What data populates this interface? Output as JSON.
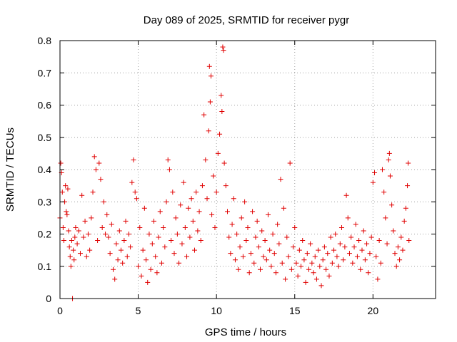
{
  "chart_data": {
    "type": "scatter",
    "title": "Day 089 of 2025, SRMTID for receiver pygr",
    "xlabel": "GPS time / hours",
    "ylabel": "SRMTID / TECUs",
    "xlim": [
      0,
      24
    ],
    "ylim": [
      0,
      0.8
    ],
    "xticks": [
      0,
      5,
      10,
      15,
      20
    ],
    "yticks": [
      0,
      0.1,
      0.2,
      0.3,
      0.4,
      0.5,
      0.6,
      0.7,
      0.8
    ],
    "grid": true,
    "marker": "+",
    "color": "#e00000",
    "series": [
      {
        "name": "SRMTID",
        "points": [
          [
            0.0,
            0.25
          ],
          [
            0.05,
            0.42
          ],
          [
            0.1,
            0.39
          ],
          [
            0.15,
            0.33
          ],
          [
            0.2,
            0.22
          ],
          [
            0.25,
            0.18
          ],
          [
            0.3,
            0.3
          ],
          [
            0.35,
            0.35
          ],
          [
            0.4,
            0.27
          ],
          [
            0.45,
            0.26
          ],
          [
            0.5,
            0.34
          ],
          [
            0.55,
            0.21
          ],
          [
            0.6,
            0.16
          ],
          [
            0.65,
            0.13
          ],
          [
            0.7,
            0.1
          ],
          [
            0.75,
            0.18
          ],
          [
            0.8,
            0.0
          ],
          [
            0.85,
            0.15
          ],
          [
            0.9,
            0.12
          ],
          [
            0.95,
            0.19
          ],
          [
            1.0,
            0.22
          ],
          [
            1.1,
            0.17
          ],
          [
            1.2,
            0.21
          ],
          [
            1.3,
            0.14
          ],
          [
            1.4,
            0.32
          ],
          [
            1.5,
            0.19
          ],
          [
            1.6,
            0.24
          ],
          [
            1.7,
            0.13
          ],
          [
            1.8,
            0.2
          ],
          [
            1.9,
            0.15
          ],
          [
            2.0,
            0.25
          ],
          [
            2.1,
            0.33
          ],
          [
            2.2,
            0.44
          ],
          [
            2.3,
            0.4
          ],
          [
            2.4,
            0.18
          ],
          [
            2.5,
            0.42
          ],
          [
            2.6,
            0.37
          ],
          [
            2.7,
            0.22
          ],
          [
            2.8,
            0.3
          ],
          [
            2.9,
            0.2
          ],
          [
            3.0,
            0.26
          ],
          [
            3.1,
            0.19
          ],
          [
            3.2,
            0.14
          ],
          [
            3.3,
            0.23
          ],
          [
            3.4,
            0.09
          ],
          [
            3.5,
            0.06
          ],
          [
            3.6,
            0.17
          ],
          [
            3.7,
            0.12
          ],
          [
            3.8,
            0.21
          ],
          [
            3.9,
            0.15
          ],
          [
            4.0,
            0.11
          ],
          [
            4.1,
            0.18
          ],
          [
            4.2,
            0.24
          ],
          [
            4.3,
            0.13
          ],
          [
            4.4,
            0.2
          ],
          [
            4.5,
            0.16
          ],
          [
            4.6,
            0.36
          ],
          [
            4.7,
            0.43
          ],
          [
            4.8,
            0.33
          ],
          [
            4.9,
            0.31
          ],
          [
            5.0,
            0.1
          ],
          [
            5.1,
            0.22
          ],
          [
            5.2,
            0.07
          ],
          [
            5.3,
            0.15
          ],
          [
            5.4,
            0.28
          ],
          [
            5.5,
            0.12
          ],
          [
            5.6,
            0.05
          ],
          [
            5.7,
            0.2
          ],
          [
            5.8,
            0.09
          ],
          [
            5.9,
            0.17
          ],
          [
            6.0,
            0.24
          ],
          [
            6.1,
            0.13
          ],
          [
            6.2,
            0.08
          ],
          [
            6.3,
            0.19
          ],
          [
            6.4,
            0.27
          ],
          [
            6.5,
            0.11
          ],
          [
            6.6,
            0.22
          ],
          [
            6.7,
            0.16
          ],
          [
            6.8,
            0.3
          ],
          [
            6.9,
            0.43
          ],
          [
            7.0,
            0.4
          ],
          [
            7.1,
            0.18
          ],
          [
            7.2,
            0.33
          ],
          [
            7.3,
            0.14
          ],
          [
            7.4,
            0.25
          ],
          [
            7.5,
            0.2
          ],
          [
            7.6,
            0.11
          ],
          [
            7.7,
            0.29
          ],
          [
            7.8,
            0.17
          ],
          [
            7.9,
            0.36
          ],
          [
            8.0,
            0.22
          ],
          [
            8.1,
            0.13
          ],
          [
            8.2,
            0.28
          ],
          [
            8.3,
            0.19
          ],
          [
            8.4,
            0.31
          ],
          [
            8.5,
            0.24
          ],
          [
            8.6,
            0.15
          ],
          [
            8.7,
            0.33
          ],
          [
            8.8,
            0.21
          ],
          [
            8.9,
            0.27
          ],
          [
            9.0,
            0.18
          ],
          [
            9.1,
            0.35
          ],
          [
            9.2,
            0.57
          ],
          [
            9.3,
            0.43
          ],
          [
            9.4,
            0.31
          ],
          [
            9.5,
            0.52
          ],
          [
            9.55,
            0.72
          ],
          [
            9.6,
            0.61
          ],
          [
            9.65,
            0.69
          ],
          [
            9.7,
            0.26
          ],
          [
            9.8,
            0.38
          ],
          [
            9.9,
            0.22
          ],
          [
            10.0,
            0.33
          ],
          [
            10.1,
            0.45
          ],
          [
            10.2,
            0.51
          ],
          [
            10.3,
            0.63
          ],
          [
            10.35,
            0.58
          ],
          [
            10.4,
            0.78
          ],
          [
            10.45,
            0.77
          ],
          [
            10.5,
            0.42
          ],
          [
            10.6,
            0.35
          ],
          [
            10.7,
            0.27
          ],
          [
            10.8,
            0.19
          ],
          [
            10.9,
            0.14
          ],
          [
            11.0,
            0.23
          ],
          [
            11.1,
            0.31
          ],
          [
            11.2,
            0.12
          ],
          [
            11.3,
            0.2
          ],
          [
            11.4,
            0.09
          ],
          [
            11.5,
            0.16
          ],
          [
            11.6,
            0.25
          ],
          [
            11.7,
            0.13
          ],
          [
            11.8,
            0.3
          ],
          [
            11.9,
            0.18
          ],
          [
            12.0,
            0.22
          ],
          [
            12.1,
            0.08
          ],
          [
            12.2,
            0.14
          ],
          [
            12.3,
            0.27
          ],
          [
            12.4,
            0.11
          ],
          [
            12.5,
            0.19
          ],
          [
            12.6,
            0.24
          ],
          [
            12.7,
            0.16
          ],
          [
            12.8,
            0.09
          ],
          [
            12.9,
            0.21
          ],
          [
            13.0,
            0.13
          ],
          [
            13.1,
            0.18
          ],
          [
            13.2,
            0.12
          ],
          [
            13.3,
            0.26
          ],
          [
            13.4,
            0.15
          ],
          [
            13.5,
            0.1
          ],
          [
            13.6,
            0.2
          ],
          [
            13.7,
            0.14
          ],
          [
            13.8,
            0.08
          ],
          [
            13.9,
            0.23
          ],
          [
            14.0,
            0.17
          ],
          [
            14.1,
            0.37
          ],
          [
            14.2,
            0.11
          ],
          [
            14.3,
            0.28
          ],
          [
            14.4,
            0.06
          ],
          [
            14.5,
            0.19
          ],
          [
            14.6,
            0.13
          ],
          [
            14.7,
            0.42
          ],
          [
            14.8,
            0.09
          ],
          [
            14.9,
            0.16
          ],
          [
            15.0,
            0.22
          ],
          [
            15.1,
            0.11
          ],
          [
            15.2,
            0.07
          ],
          [
            15.3,
            0.15
          ],
          [
            15.4,
            0.1
          ],
          [
            15.5,
            0.18
          ],
          [
            15.6,
            0.12
          ],
          [
            15.7,
            0.05
          ],
          [
            15.8,
            0.14
          ],
          [
            15.9,
            0.09
          ],
          [
            16.0,
            0.17
          ],
          [
            16.1,
            0.11
          ],
          [
            16.2,
            0.08
          ],
          [
            16.3,
            0.13
          ],
          [
            16.4,
            0.06
          ],
          [
            16.5,
            0.15
          ],
          [
            16.6,
            0.1
          ],
          [
            16.7,
            0.04
          ],
          [
            16.8,
            0.12
          ],
          [
            16.9,
            0.16
          ],
          [
            17.0,
            0.09
          ],
          [
            17.1,
            0.14
          ],
          [
            17.2,
            0.07
          ],
          [
            17.3,
            0.19
          ],
          [
            17.4,
            0.11
          ],
          [
            17.5,
            0.15
          ],
          [
            17.6,
            0.2
          ],
          [
            17.7,
            0.13
          ],
          [
            17.8,
            0.1
          ],
          [
            17.9,
            0.17
          ],
          [
            18.0,
            0.22
          ],
          [
            18.1,
            0.12
          ],
          [
            18.2,
            0.16
          ],
          [
            18.3,
            0.32
          ],
          [
            18.4,
            0.25
          ],
          [
            18.5,
            0.14
          ],
          [
            18.6,
            0.19
          ],
          [
            18.7,
            0.11
          ],
          [
            18.8,
            0.16
          ],
          [
            18.9,
            0.23
          ],
          [
            19.0,
            0.13
          ],
          [
            19.1,
            0.18
          ],
          [
            19.2,
            0.09
          ],
          [
            19.3,
            0.15
          ],
          [
            19.4,
            0.21
          ],
          [
            19.5,
            0.12
          ],
          [
            19.6,
            0.17
          ],
          [
            19.7,
            0.08
          ],
          [
            19.8,
            0.14
          ],
          [
            19.9,
            0.19
          ],
          [
            20.0,
            0.36
          ],
          [
            20.1,
            0.39
          ],
          [
            20.2,
            0.13
          ],
          [
            20.3,
            0.06
          ],
          [
            20.4,
            0.18
          ],
          [
            20.5,
            0.11
          ],
          [
            20.6,
            0.4
          ],
          [
            20.7,
            0.33
          ],
          [
            20.8,
            0.25
          ],
          [
            20.9,
            0.17
          ],
          [
            21.0,
            0.43
          ],
          [
            21.05,
            0.45
          ],
          [
            21.1,
            0.38
          ],
          [
            21.2,
            0.29
          ],
          [
            21.3,
            0.21
          ],
          [
            21.4,
            0.14
          ],
          [
            21.5,
            0.1
          ],
          [
            21.6,
            0.16
          ],
          [
            21.7,
            0.12
          ],
          [
            21.8,
            0.19
          ],
          [
            21.9,
            0.15
          ],
          [
            22.0,
            0.24
          ],
          [
            22.1,
            0.28
          ],
          [
            22.2,
            0.35
          ],
          [
            22.25,
            0.42
          ],
          [
            22.3,
            0.18
          ]
        ]
      }
    ]
  }
}
